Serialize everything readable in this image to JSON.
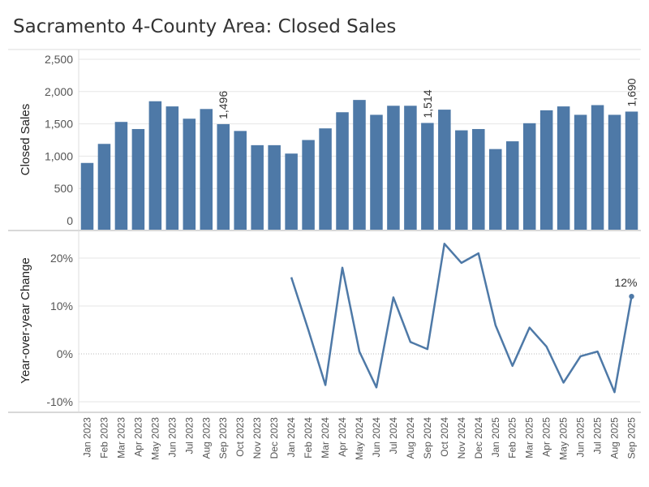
{
  "title": "Sacramento 4-County Area: Closed Sales",
  "colors": {
    "bar": "#4e79a7",
    "line": "#4e79a7",
    "grid": "#e6e6e6",
    "axis": "#b0b0b0"
  },
  "chart_data": [
    {
      "type": "bar",
      "ylabel": "Closed Sales",
      "ylim": [
        0,
        2500
      ],
      "yticks": [
        "2,500",
        "2,000",
        "1,500",
        "1,000",
        "500",
        "0"
      ],
      "ytick_values": [
        2500,
        2000,
        1500,
        1000,
        500,
        0
      ],
      "grid": true,
      "categories": [
        "Jan 2023",
        "Feb 2023",
        "Mar 2023",
        "Apr 2023",
        "May 2023",
        "Jun 2023",
        "Jul 2023",
        "Aug 2023",
        "Sep 2023",
        "Oct 2023",
        "Nov 2023",
        "Dec 2023",
        "Jan 2024",
        "Feb 2024",
        "Mar 2024",
        "Apr 2024",
        "May 2024",
        "Jun 2024",
        "Jul 2024",
        "Aug 2024",
        "Sep 2024",
        "Oct 2024",
        "Nov 2024",
        "Dec 2024",
        "Jan 2025",
        "Feb 2025",
        "Mar 2025",
        "Apr 2025",
        "May 2025",
        "Jun 2025",
        "Jul 2025",
        "Aug 2025",
        "Sep 2025"
      ],
      "values": [
        895,
        1190,
        1530,
        1420,
        1850,
        1770,
        1580,
        1730,
        1496,
        1390,
        1170,
        1170,
        1040,
        1250,
        1430,
        1680,
        1870,
        1640,
        1780,
        1780,
        1514,
        1720,
        1400,
        1420,
        1110,
        1230,
        1510,
        1710,
        1770,
        1640,
        1790,
        1640,
        1690
      ],
      "labels": [
        {
          "category": "Sep 2023",
          "text": "1,496"
        },
        {
          "category": "Sep 2024",
          "text": "1,514"
        },
        {
          "category": "Sep 2025",
          "text": "1,690"
        }
      ]
    },
    {
      "type": "line",
      "ylabel": "Year-over-year Change",
      "ylim": [
        -11,
        24
      ],
      "yticks": [
        "20%",
        "10%",
        "0%",
        "-10%"
      ],
      "ytick_values": [
        20,
        10,
        0,
        -10
      ],
      "grid": true,
      "categories": [
        "Jan 2023",
        "Feb 2023",
        "Mar 2023",
        "Apr 2023",
        "May 2023",
        "Jun 2023",
        "Jul 2023",
        "Aug 2023",
        "Sep 2023",
        "Oct 2023",
        "Nov 2023",
        "Dec 2023",
        "Jan 2024",
        "Feb 2024",
        "Mar 2024",
        "Apr 2024",
        "May 2024",
        "Jun 2024",
        "Jul 2024",
        "Aug 2024",
        "Sep 2024",
        "Oct 2024",
        "Nov 2024",
        "Dec 2024",
        "Jan 2025",
        "Feb 2025",
        "Mar 2025",
        "Apr 2025",
        "May 2025",
        "Jun 2025",
        "Jul 2025",
        "Aug 2025",
        "Sep 2025"
      ],
      "values": [
        null,
        null,
        null,
        null,
        null,
        null,
        null,
        null,
        null,
        null,
        null,
        null,
        16,
        5,
        -6.5,
        18,
        0.5,
        -7,
        11.8,
        2.5,
        1,
        23,
        19,
        21,
        6,
        -2.5,
        5.5,
        1.5,
        -6,
        -0.5,
        0.5,
        -8,
        12
      ],
      "labels": [
        {
          "category": "Sep 2025",
          "text": "12%"
        }
      ]
    }
  ]
}
